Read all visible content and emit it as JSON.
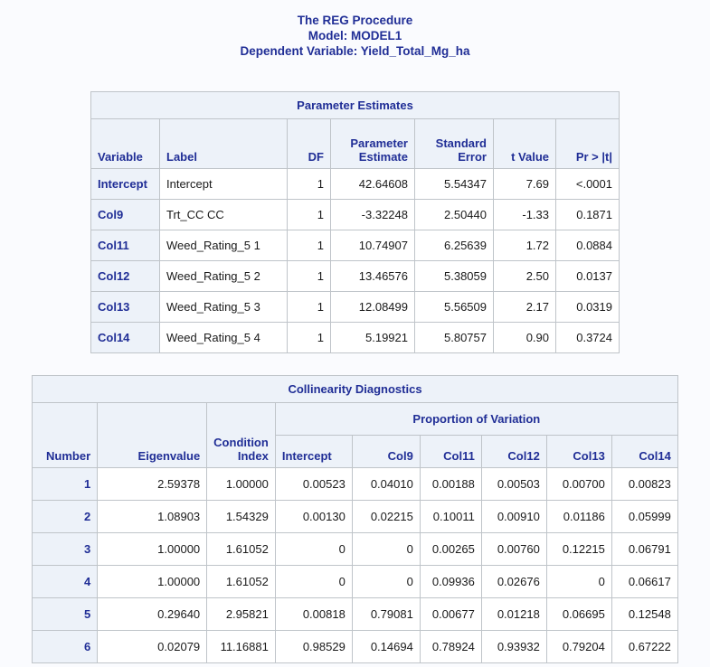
{
  "titles": {
    "line1": "The REG Procedure",
    "line2": "Model: MODEL1",
    "line3": "Dependent Variable: Yield_Total_Mg_ha"
  },
  "parameter_estimates": {
    "title": "Parameter Estimates",
    "columns": [
      "Variable",
      "Label",
      "DF",
      "Parameter Estimate",
      "Standard Error",
      "t Value",
      "Pr > |t|"
    ],
    "rows": [
      [
        "Intercept",
        "Intercept",
        "1",
        "42.64608",
        "5.54347",
        "7.69",
        "<.0001"
      ],
      [
        "Col9",
        "Trt_CC CC",
        "1",
        "-3.32248",
        "2.50440",
        "-1.33",
        "0.1871"
      ],
      [
        "Col11",
        "Weed_Rating_5 1",
        "1",
        "10.74907",
        "6.25639",
        "1.72",
        "0.0884"
      ],
      [
        "Col12",
        "Weed_Rating_5 2",
        "1",
        "13.46576",
        "5.38059",
        "2.50",
        "0.0137"
      ],
      [
        "Col13",
        "Weed_Rating_5 3",
        "1",
        "12.08499",
        "5.56509",
        "2.17",
        "0.0319"
      ],
      [
        "Col14",
        "Weed_Rating_5 4",
        "1",
        "5.19921",
        "5.80757",
        "0.90",
        "0.3724"
      ]
    ]
  },
  "collinearity_diagnostics": {
    "title": "Collinearity Diagnostics",
    "columns": [
      "Number",
      "Eigenvalue",
      "Condition Index"
    ],
    "span_header": "Proportion of Variation",
    "prop_columns": [
      "Intercept",
      "Col9",
      "Col11",
      "Col12",
      "Col13",
      "Col14"
    ],
    "rows": [
      [
        "1",
        "2.59378",
        "1.00000",
        "0.00523",
        "0.04010",
        "0.00188",
        "0.00503",
        "0.00700",
        "0.00823"
      ],
      [
        "2",
        "1.08903",
        "1.54329",
        "0.00130",
        "0.02215",
        "0.10011",
        "0.00910",
        "0.01186",
        "0.05999"
      ],
      [
        "3",
        "1.00000",
        "1.61052",
        "0",
        "0",
        "0.00265",
        "0.00760",
        "0.12215",
        "0.06791"
      ],
      [
        "4",
        "1.00000",
        "1.61052",
        "0",
        "0",
        "0.09936",
        "0.02676",
        "0",
        "0.06617"
      ],
      [
        "5",
        "0.29640",
        "2.95821",
        "0.00818",
        "0.79081",
        "0.00677",
        "0.01218",
        "0.06695",
        "0.12548"
      ],
      [
        "6",
        "0.02079",
        "11.16881",
        "0.98529",
        "0.14694",
        "0.78924",
        "0.93932",
        "0.79204",
        "0.67222"
      ]
    ]
  },
  "colors": {
    "title_text": "#202E96",
    "header_background": "#EDF2F9",
    "cell_border": "#BFC4C9",
    "page_background": "#FAFBFE",
    "data_text": "#1A1A1A"
  }
}
